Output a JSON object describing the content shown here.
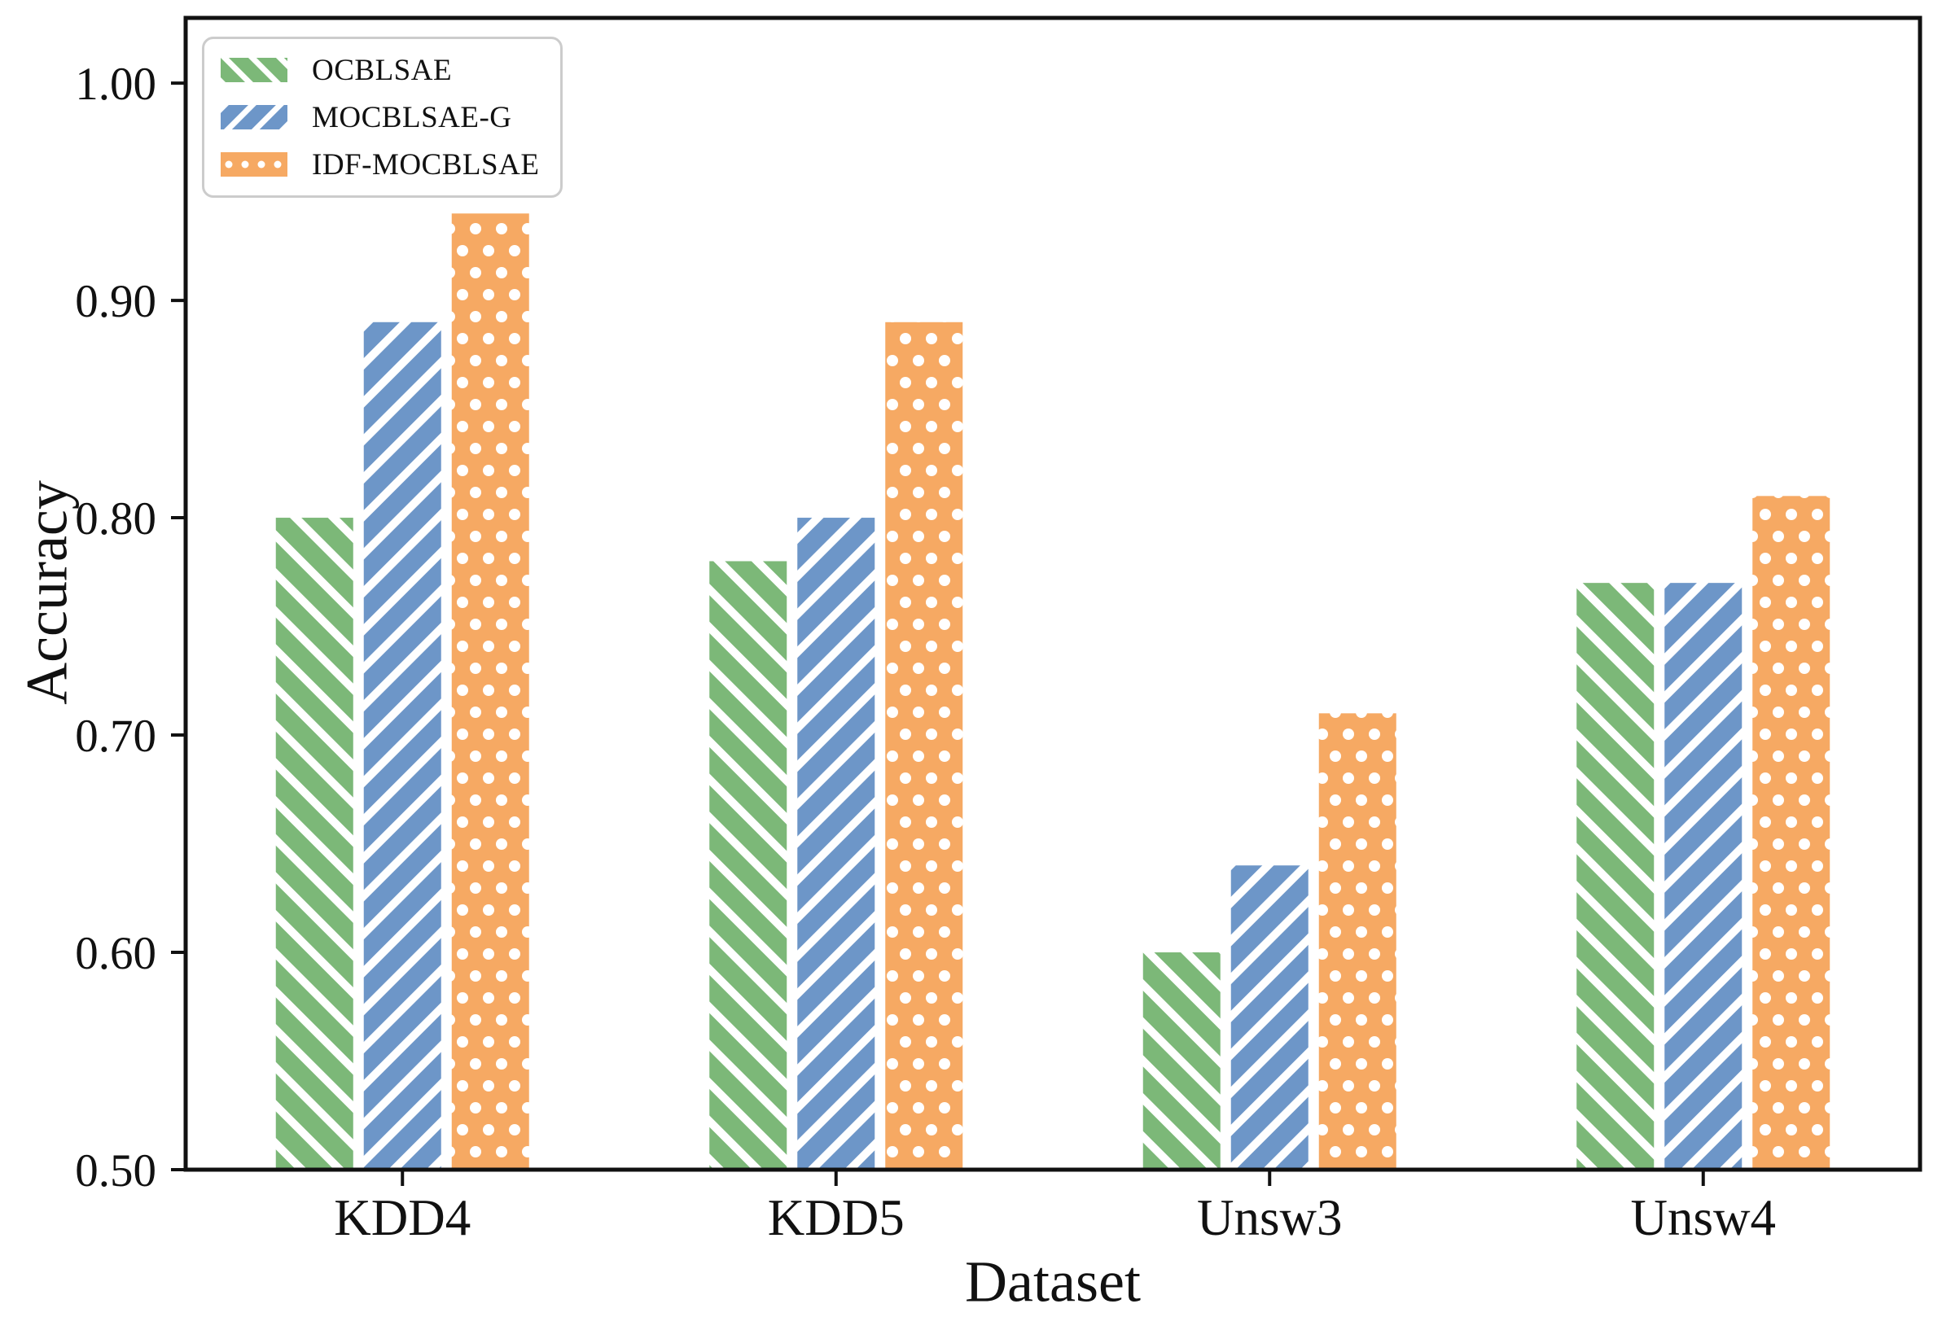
{
  "chart_data": {
    "type": "bar",
    "xlabel": "Dataset",
    "ylabel": "Accuracy",
    "categories": [
      "KDD4",
      "KDD5",
      "Unsw3",
      "Unsw4"
    ],
    "series": [
      {
        "name": "OCBLSAE",
        "color": "#7cb878",
        "hatch": "backslash",
        "values": [
          0.8,
          0.78,
          0.6,
          0.77
        ]
      },
      {
        "name": "MOCBLSAE-G",
        "color": "#6d96c8",
        "hatch": "slash",
        "values": [
          0.89,
          0.8,
          0.64,
          0.77
        ]
      },
      {
        "name": "IDF-MOCBLSAE",
        "color": "#f6a963",
        "hatch": "dots",
        "values": [
          0.94,
          0.89,
          0.71,
          0.81
        ]
      }
    ],
    "ylim": [
      0.5,
      1.03
    ],
    "yticks": [
      0.5,
      0.6,
      0.7,
      0.8,
      0.9,
      1.0
    ],
    "ytick_labels": [
      "0.50",
      "0.60",
      "0.70",
      "0.80",
      "0.90",
      "1.00"
    ],
    "legend_position": "upper-left",
    "grid": false,
    "hatch_color": "#ffffff",
    "axis_color": "#111111"
  }
}
